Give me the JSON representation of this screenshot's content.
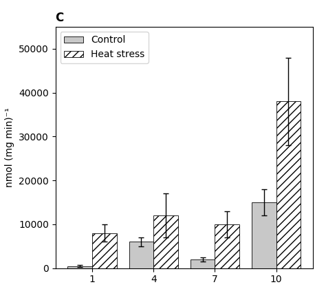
{
  "chart_data": {
    "type": "bar",
    "title": "C",
    "categories": [
      "1",
      "4",
      "7",
      "10"
    ],
    "y_label": "nmol (mg min)⁻¹",
    "series": [
      {
        "name": "Control",
        "color": "#c8c8c8",
        "values": [
          500,
          6000,
          2000,
          15000
        ],
        "errors": [
          300,
          1000,
          500,
          3000
        ]
      },
      {
        "name": "Heat stress",
        "color": "#ffffff",
        "values": [
          8000,
          12000,
          10000,
          38000
        ],
        "errors": [
          2000,
          5000,
          3000,
          10000
        ]
      }
    ],
    "ylim": [
      0,
      55000
    ],
    "yticks": [
      0,
      10000,
      20000,
      30000,
      40000,
      50000
    ],
    "grid": false,
    "legend": "upper left"
  }
}
